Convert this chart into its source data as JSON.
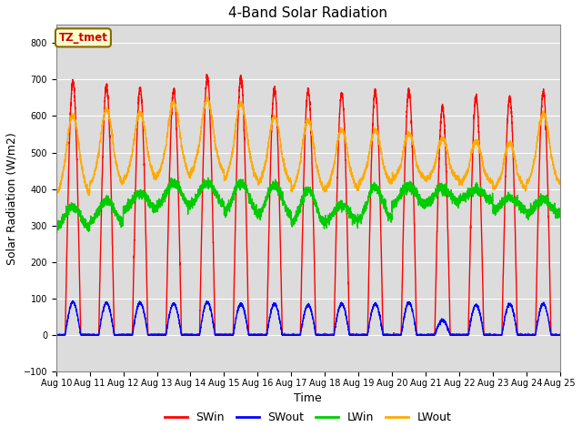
{
  "title": "4-Band Solar Radiation",
  "xlabel": "Time",
  "ylabel": "Solar Radiation (W/m2)",
  "ylim": [
    -100,
    850
  ],
  "yticks": [
    -100,
    0,
    100,
    200,
    300,
    400,
    500,
    600,
    700,
    800
  ],
  "x_tick_labels": [
    "Aug 10",
    "Aug 11",
    "Aug 12",
    "Aug 13",
    "Aug 14",
    "Aug 15",
    "Aug 16",
    "Aug 17",
    "Aug 18",
    "Aug 19",
    "Aug 20",
    "Aug 21",
    "Aug 22",
    "Aug 23",
    "Aug 24",
    "Aug 25"
  ],
  "colors": {
    "SWin": "#ff0000",
    "SWout": "#0000ff",
    "LWin": "#00cc00",
    "LWout": "#ffaa00"
  },
  "legend_label_box": "TZ_tmet",
  "legend_box_facecolor": "#ffffcc",
  "legend_box_edgecolor": "#886600",
  "legend_box_textcolor": "#cc0000",
  "bg_color": "#dcdcdc",
  "fig_facecolor": "#ffffff",
  "grid_color": "#ffffff",
  "linewidth": 1.0,
  "days": 15,
  "SWin_peaks": [
    695,
    682,
    677,
    669,
    707,
    708,
    676,
    671,
    664,
    666,
    671,
    622,
    651,
    652,
    666
  ],
  "SWout_peaks": [
    90,
    88,
    88,
    86,
    90,
    85,
    85,
    82,
    85,
    85,
    88,
    40,
    82,
    85,
    85
  ],
  "LWin_day_starts": [
    295,
    310,
    345,
    355,
    360,
    338,
    328,
    308,
    312,
    318,
    358,
    362,
    372,
    342,
    332
  ],
  "LWin_day_peaks": [
    352,
    368,
    388,
    417,
    417,
    417,
    412,
    397,
    357,
    407,
    407,
    402,
    397,
    377,
    372
  ],
  "LWout_base": [
    390,
    415,
    428,
    438,
    448,
    428,
    418,
    398,
    403,
    418,
    428,
    428,
    418,
    403,
    418
  ],
  "LWout_peaks": [
    545,
    563,
    553,
    583,
    588,
    578,
    543,
    533,
    508,
    508,
    498,
    488,
    478,
    473,
    553
  ]
}
